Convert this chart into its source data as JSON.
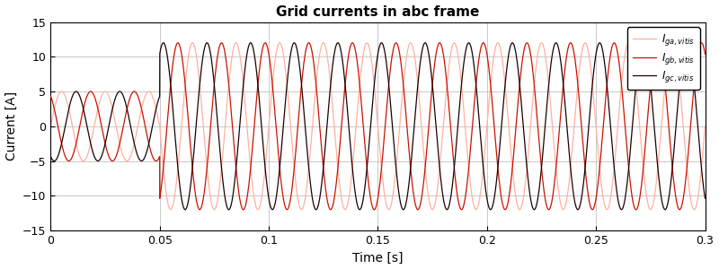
{
  "title": "Grid currents in abc frame",
  "xlabel": "Time [s]",
  "ylabel": "Current [A]",
  "xlim": [
    0,
    0.3
  ],
  "ylim": [
    -15,
    15
  ],
  "yticks": [
    -15,
    -10,
    -5,
    0,
    5,
    10,
    15
  ],
  "xticks": [
    0,
    0.05,
    0.1,
    0.15,
    0.2,
    0.25,
    0.3
  ],
  "freq": 50,
  "amp_low": 5,
  "amp_high": 12,
  "step_time": 0.05,
  "color_a": "#FFB0A0",
  "color_b": "#CC1100",
  "color_c": "#1A0000",
  "phase_a": 0.0,
  "phase_b": 2.0943951,
  "phase_c": 4.1887902,
  "lw_a": 0.9,
  "lw_b": 0.9,
  "lw_c": 0.9,
  "figsize": [
    8.0,
    3.0
  ],
  "dpi": 100,
  "grid_color": "#C0C0C0",
  "grid_lw": 0.6,
  "title_fontsize": 11,
  "label_fontsize": 10,
  "tick_fontsize": 9,
  "legend_fontsize": 8.5
}
